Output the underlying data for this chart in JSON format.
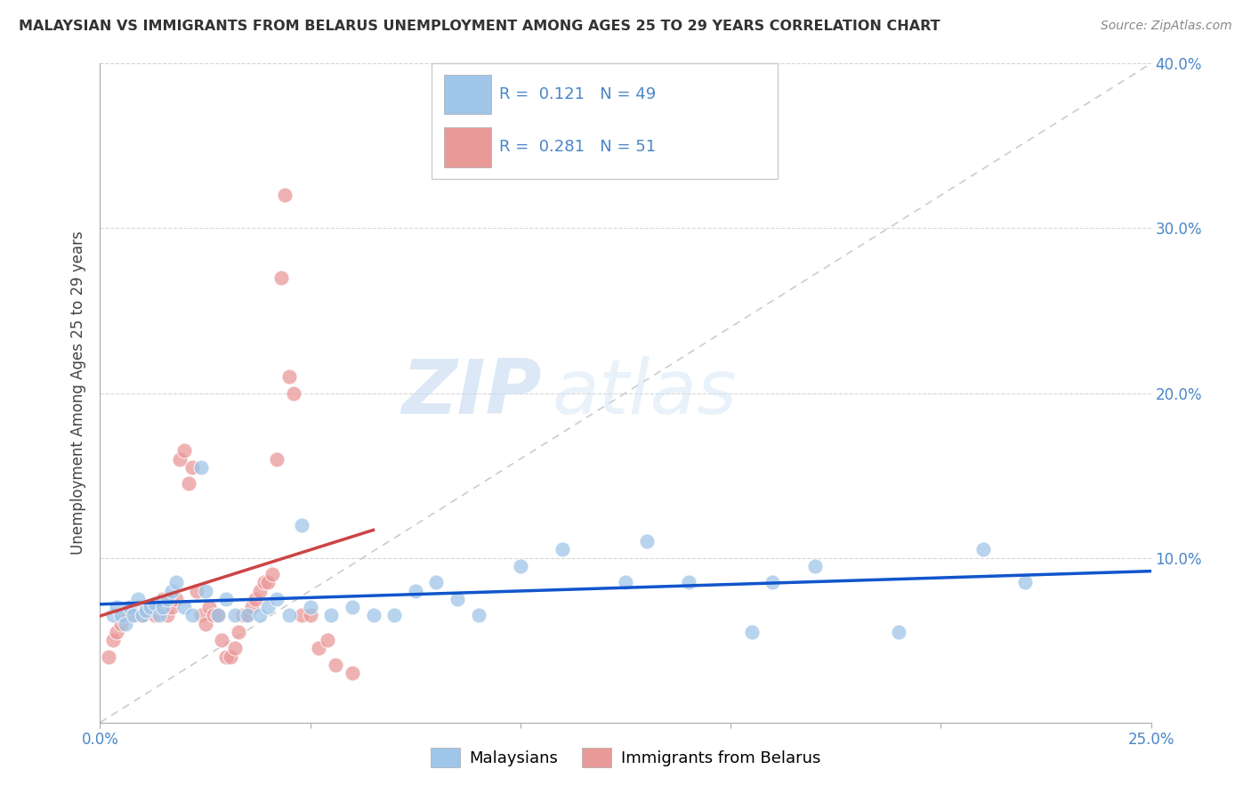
{
  "title": "MALAYSIAN VS IMMIGRANTS FROM BELARUS UNEMPLOYMENT AMONG AGES 25 TO 29 YEARS CORRELATION CHART",
  "source": "Source: ZipAtlas.com",
  "ylabel": "Unemployment Among Ages 25 to 29 years",
  "xlim": [
    0.0,
    0.25
  ],
  "ylim": [
    0.0,
    0.4
  ],
  "legend_label1": "Malaysians",
  "legend_label2": "Immigrants from Belarus",
  "r1": "0.121",
  "n1": "49",
  "r2": "0.281",
  "n2": "51",
  "color_blue": "#9fc5e8",
  "color_pink": "#ea9999",
  "line_blue": "#1155cc",
  "line_pink": "#cc4444",
  "watermark_zip": "ZIP",
  "watermark_atlas": "atlas",
  "malaysians_x": [
    0.003,
    0.004,
    0.005,
    0.006,
    0.007,
    0.008,
    0.009,
    0.01,
    0.011,
    0.012,
    0.013,
    0.014,
    0.015,
    0.016,
    0.017,
    0.018,
    0.02,
    0.022,
    0.025,
    0.028,
    0.03,
    0.032,
    0.035,
    0.038,
    0.04,
    0.042,
    0.045,
    0.05,
    0.055,
    0.06,
    0.065,
    0.07,
    0.075,
    0.08,
    0.085,
    0.09,
    0.1,
    0.11,
    0.125,
    0.14,
    0.155,
    0.17,
    0.19,
    0.21,
    0.22,
    0.024,
    0.048,
    0.13,
    0.16
  ],
  "malaysians_y": [
    0.065,
    0.07,
    0.065,
    0.06,
    0.07,
    0.065,
    0.075,
    0.065,
    0.068,
    0.07,
    0.072,
    0.065,
    0.07,
    0.075,
    0.08,
    0.085,
    0.07,
    0.065,
    0.08,
    0.065,
    0.075,
    0.065,
    0.065,
    0.065,
    0.07,
    0.075,
    0.065,
    0.07,
    0.065,
    0.07,
    0.065,
    0.065,
    0.08,
    0.085,
    0.075,
    0.065,
    0.095,
    0.105,
    0.085,
    0.085,
    0.055,
    0.095,
    0.055,
    0.105,
    0.085,
    0.155,
    0.12,
    0.11,
    0.085
  ],
  "belarus_x": [
    0.002,
    0.003,
    0.004,
    0.005,
    0.006,
    0.007,
    0.008,
    0.009,
    0.01,
    0.011,
    0.012,
    0.013,
    0.014,
    0.015,
    0.016,
    0.017,
    0.018,
    0.019,
    0.02,
    0.021,
    0.022,
    0.023,
    0.024,
    0.025,
    0.026,
    0.027,
    0.028,
    0.029,
    0.03,
    0.031,
    0.032,
    0.033,
    0.034,
    0.035,
    0.036,
    0.037,
    0.038,
    0.039,
    0.04,
    0.041,
    0.042,
    0.043,
    0.044,
    0.045,
    0.046,
    0.048,
    0.05,
    0.052,
    0.054,
    0.056,
    0.06
  ],
  "belarus_y": [
    0.04,
    0.05,
    0.055,
    0.06,
    0.065,
    0.07,
    0.065,
    0.07,
    0.065,
    0.068,
    0.07,
    0.065,
    0.07,
    0.075,
    0.065,
    0.07,
    0.075,
    0.16,
    0.165,
    0.145,
    0.155,
    0.08,
    0.065,
    0.06,
    0.07,
    0.065,
    0.065,
    0.05,
    0.04,
    0.04,
    0.045,
    0.055,
    0.065,
    0.065,
    0.07,
    0.075,
    0.08,
    0.085,
    0.085,
    0.09,
    0.16,
    0.27,
    0.32,
    0.21,
    0.2,
    0.065,
    0.065,
    0.045,
    0.05,
    0.035,
    0.03
  ]
}
